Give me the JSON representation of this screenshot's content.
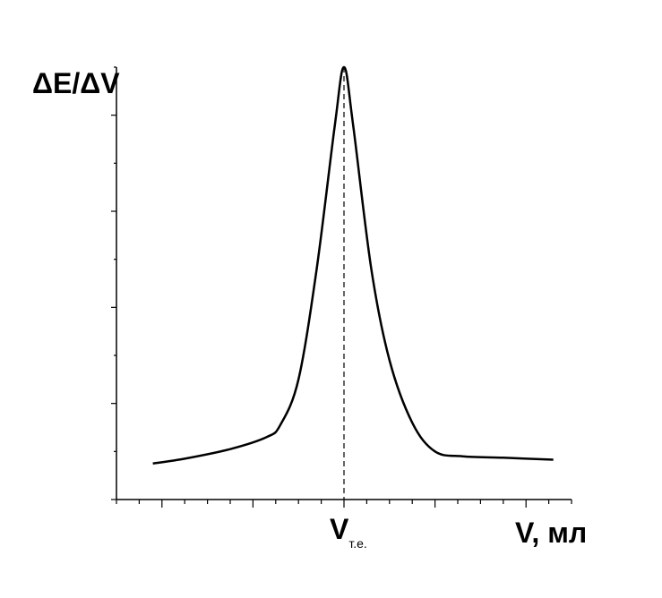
{
  "chart_data": {
    "type": "line",
    "title": "",
    "ylabel": "ΔE/ΔV",
    "xlabel": "V, мл",
    "equivalence_label": {
      "main": "V",
      "sub": "т.е."
    },
    "xlim": [
      0,
      10
    ],
    "ylim": [
      0,
      9
    ],
    "grid": false,
    "legend": "none",
    "line_color": "#000000",
    "series": [
      {
        "x": [
          0.8,
          1.5,
          2.5,
          3.3,
          3.6,
          4.0,
          4.4,
          4.8,
          5.0,
          5.2,
          5.6,
          6.0,
          6.5,
          7.0,
          7.6,
          8.5,
          9.6
        ],
        "y": [
          0.75,
          0.85,
          1.05,
          1.3,
          1.55,
          2.5,
          4.8,
          7.8,
          9.0,
          7.8,
          4.8,
          2.9,
          1.6,
          1.0,
          0.9,
          0.87,
          0.83
        ]
      }
    ],
    "equivalence_x": 5.0
  }
}
